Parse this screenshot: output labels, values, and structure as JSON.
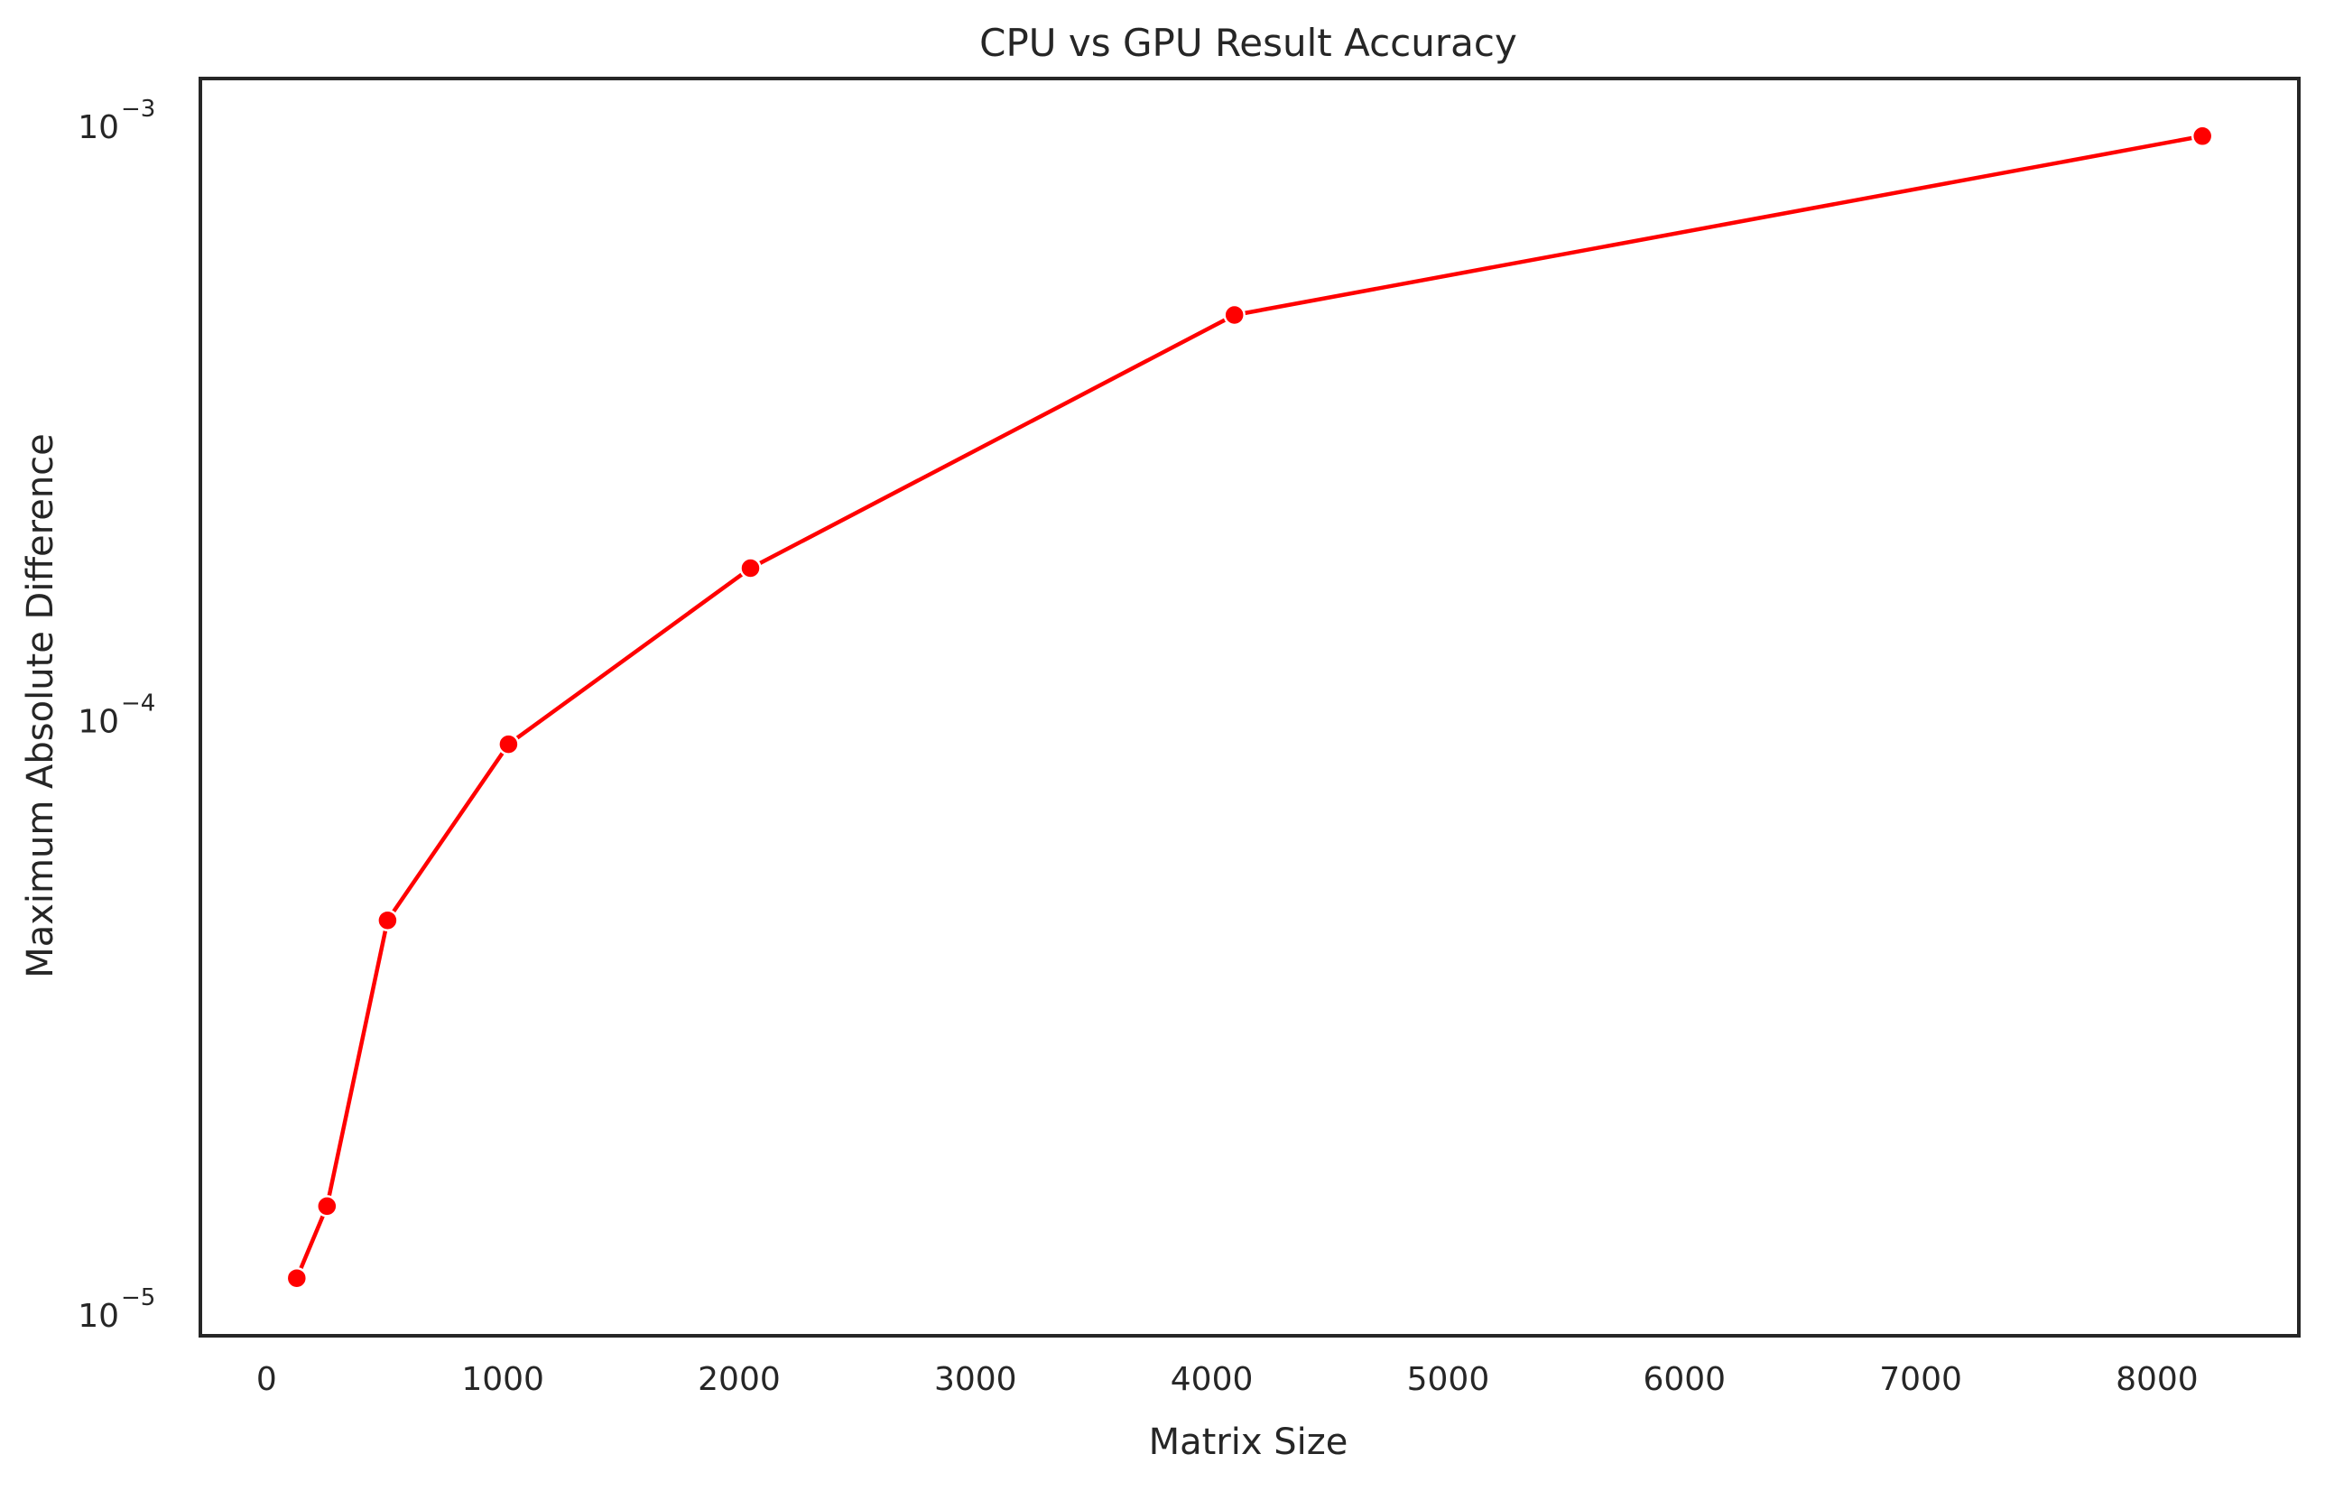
{
  "chart_data": {
    "type": "line",
    "title": "CPU vs GPU Result Accuracy",
    "xlabel": "Matrix Size",
    "ylabel": "Maximum Absolute Difference",
    "x_scale": "linear",
    "y_scale": "log",
    "xlim": [
      -280,
      8600
    ],
    "ylim": [
      9.2e-06,
      0.0012
    ],
    "x_ticks": [
      {
        "value": 0,
        "label": "0"
      },
      {
        "value": 1000,
        "label": "1000"
      },
      {
        "value": 2000,
        "label": "2000"
      },
      {
        "value": 3000,
        "label": "3000"
      },
      {
        "value": 4000,
        "label": "4000"
      },
      {
        "value": 5000,
        "label": "5000"
      },
      {
        "value": 6000,
        "label": "6000"
      },
      {
        "value": 7000,
        "label": "7000"
      },
      {
        "value": 8000,
        "label": "8000"
      }
    ],
    "y_ticks": [
      {
        "value": 1e-05,
        "base": "10",
        "exponent": "−5"
      },
      {
        "value": 0.0001,
        "base": "10",
        "exponent": "−4"
      },
      {
        "value": 0.001,
        "base": "10",
        "exponent": "−3"
      }
    ],
    "grid": false,
    "series": [
      {
        "color": "#ff0000",
        "marker": "circle",
        "x": [
          128,
          256,
          512,
          1024,
          2048,
          4096,
          8192
        ],
        "y": [
          1.15e-05,
          1.52e-05,
          4.6e-05,
          9.1e-05,
          0.00018,
          0.00048,
          0.00096
        ]
      }
    ]
  }
}
